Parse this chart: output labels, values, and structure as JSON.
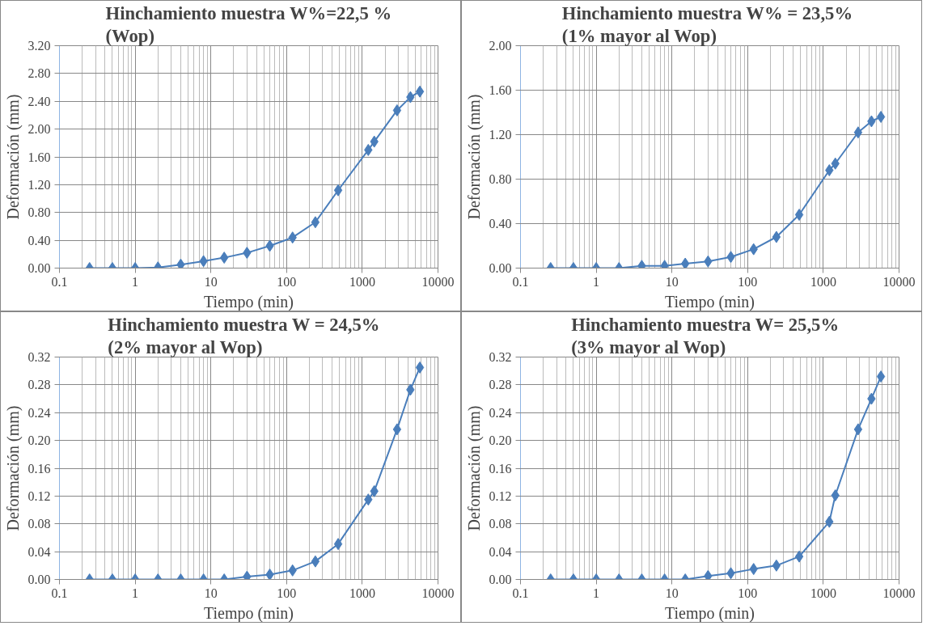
{
  "chart_data": [
    {
      "type": "line",
      "title": "Hinchamiento muestra W%=22,5 %\n(Wop)",
      "xlabel": "Tiempo (min)",
      "ylabel": "Deformación (mm)",
      "log": "x",
      "grid": true,
      "marker": "diamond",
      "line_style": "solid",
      "x": [
        0.25,
        0.5,
        1,
        2,
        4,
        8,
        15,
        30,
        60,
        120,
        240,
        480,
        1200,
        1440,
        2880,
        4320,
        5760
      ],
      "xlim": [
        0.1,
        10000
      ],
      "xticks": [
        0.1,
        1,
        10,
        100,
        1000,
        10000
      ],
      "ylim": [
        0,
        3.2
      ],
      "yticks": [
        {
          "value": 0,
          "label": "0.00"
        },
        {
          "value": 0.4,
          "label": "0.40"
        },
        {
          "value": 0.8,
          "label": "0.80"
        },
        {
          "value": 1.2,
          "label": "1.20"
        },
        {
          "value": 1.6,
          "label": "1.60"
        },
        {
          "value": 2.0,
          "label": "2.00"
        },
        {
          "value": 2.4,
          "label": "2.40"
        },
        {
          "value": 2.8,
          "label": "2.80"
        },
        {
          "value": 3.2,
          "label": "3.20"
        }
      ],
      "series": [
        {
          "color": "#4a7ebb",
          "values": [
            0,
            0,
            0,
            0.01,
            0.05,
            0.1,
            0.15,
            0.22,
            0.32,
            0.44,
            0.66,
            1.12,
            1.7,
            1.82,
            2.27,
            2.46,
            2.54
          ]
        }
      ]
    },
    {
      "type": "line",
      "title": "Hinchamiento muestra  W% = 23,5%\n(1%  mayor al Wop)",
      "xlabel": "Tiempo (min)",
      "ylabel": "Deformación (mm)",
      "log": "x",
      "grid": true,
      "marker": "diamond",
      "line_style": "solid",
      "x": [
        0.25,
        0.5,
        1,
        2,
        4,
        8,
        15,
        30,
        60,
        120,
        240,
        480,
        1200,
        1440,
        2880,
        4320,
        5760
      ],
      "xlim": [
        0.1,
        10000
      ],
      "xticks": [
        0.1,
        1,
        10,
        100,
        1000,
        10000
      ],
      "ylim": [
        0,
        2.0
      ],
      "yticks": [
        {
          "value": 0,
          "label": "0.00"
        },
        {
          "value": 0.4,
          "label": "0.40"
        },
        {
          "value": 0.8,
          "label": "0.80"
        },
        {
          "value": 1.2,
          "label": "1.20"
        },
        {
          "value": 1.6,
          "label": "1.60"
        },
        {
          "value": 2.0,
          "label": "2.00"
        }
      ],
      "series": [
        {
          "color": "#4a7ebb",
          "values": [
            0,
            0,
            0,
            0,
            0.02,
            0.02,
            0.04,
            0.06,
            0.1,
            0.17,
            0.28,
            0.48,
            0.88,
            0.94,
            1.22,
            1.32,
            1.36
          ]
        }
      ]
    },
    {
      "type": "line",
      "title": "Hinchamiento muestra   W = 24,5%\n(2% mayor al Wop)",
      "xlabel": "Tiempo (min)",
      "ylabel": "Deformación (mm)",
      "log": "x",
      "grid": true,
      "marker": "diamond",
      "line_style": "solid",
      "x": [
        0.25,
        0.5,
        1,
        2,
        4,
        8,
        15,
        30,
        60,
        120,
        240,
        480,
        1200,
        1440,
        2880,
        4320,
        5760
      ],
      "xlim": [
        0.1,
        10000
      ],
      "xticks": [
        0.1,
        1,
        10,
        100,
        1000,
        10000
      ],
      "ylim": [
        0,
        0.32
      ],
      "yticks": [
        {
          "value": 0,
          "label": "0.00"
        },
        {
          "value": 0.04,
          "label": "0.04"
        },
        {
          "value": 0.08,
          "label": "0.08"
        },
        {
          "value": 0.12,
          "label": "0.12"
        },
        {
          "value": 0.16,
          "label": "0.16"
        },
        {
          "value": 0.2,
          "label": "0.20"
        },
        {
          "value": 0.24,
          "label": "0.24"
        },
        {
          "value": 0.28,
          "label": "0.28"
        },
        {
          "value": 0.32,
          "label": "0.32"
        }
      ],
      "series": [
        {
          "color": "#4a7ebb",
          "values": [
            0,
            0,
            0,
            0,
            0,
            0,
            0,
            0.004,
            0.007,
            0.013,
            0.026,
            0.051,
            0.115,
            0.127,
            0.216,
            0.273,
            0.305
          ]
        }
      ]
    },
    {
      "type": "line",
      "title": "Hinchamiento muestra   W= 25,5%\n(3% mayor al Wop)",
      "xlabel": "Tiempo (min)",
      "ylabel": "Deformación (mm)",
      "log": "x",
      "grid": true,
      "marker": "diamond",
      "line_style": "solid",
      "x": [
        0.25,
        0.5,
        1,
        2,
        4,
        8,
        15,
        30,
        60,
        120,
        240,
        480,
        1200,
        1440,
        2880,
        4320,
        5760
      ],
      "xlim": [
        0.1,
        10000
      ],
      "xticks": [
        0.1,
        1,
        10,
        100,
        1000,
        10000
      ],
      "ylim": [
        0,
        0.32
      ],
      "yticks": [
        {
          "value": 0,
          "label": "0.00"
        },
        {
          "value": 0.04,
          "label": "0.04"
        },
        {
          "value": 0.08,
          "label": "0.08"
        },
        {
          "value": 0.12,
          "label": "0.12"
        },
        {
          "value": 0.16,
          "label": "0.16"
        },
        {
          "value": 0.2,
          "label": "0.20"
        },
        {
          "value": 0.24,
          "label": "0.24"
        },
        {
          "value": 0.28,
          "label": "0.28"
        },
        {
          "value": 0.32,
          "label": "0.32"
        }
      ],
      "series": [
        {
          "color": "#4a7ebb",
          "values": [
            0,
            0,
            0,
            0,
            0,
            0,
            0,
            0.005,
            0.009,
            0.015,
            0.02,
            0.033,
            0.083,
            0.121,
            0.216,
            0.26,
            0.292
          ]
        }
      ]
    }
  ]
}
